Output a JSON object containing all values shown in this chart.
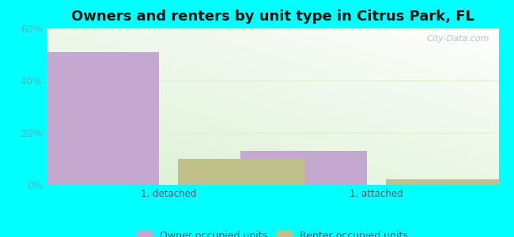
{
  "title": "Owners and renters by unit type in Citrus Park, FL",
  "categories": [
    "1, detached",
    "1, attached"
  ],
  "owner_values": [
    51,
    13
  ],
  "renter_values": [
    10,
    2
  ],
  "owner_color": "#c4a8d0",
  "renter_color": "#bfc08a",
  "ylim": [
    0,
    60
  ],
  "yticks": [
    0,
    20,
    40,
    60
  ],
  "ytick_labels": [
    "0%",
    "20%",
    "40%",
    "60%"
  ],
  "bar_width": 0.28,
  "outer_bg": "#00ffff",
  "title_fontsize": 13,
  "legend_labels": [
    "Owner occupied units",
    "Renter occupied units"
  ],
  "watermark": "City-Data.com",
  "tick_color": "#44bbbb",
  "label_color": "#555566",
  "grid_color": "#ddeecc",
  "group_positions": [
    0.27,
    0.73
  ]
}
